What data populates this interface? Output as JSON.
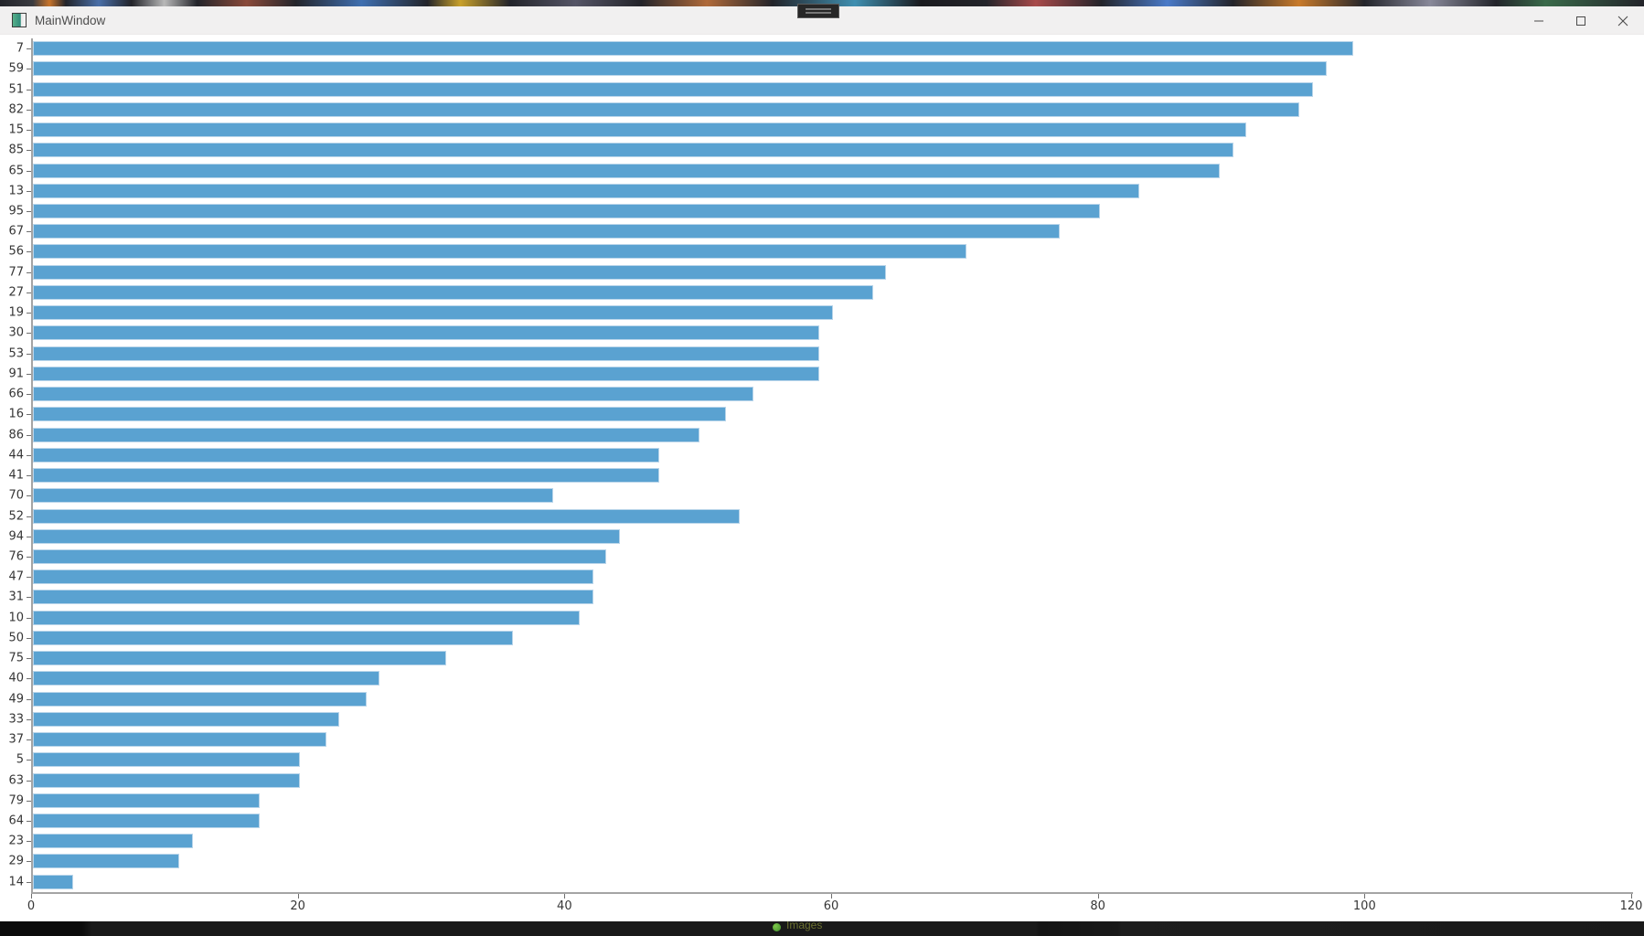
{
  "window": {
    "title": "MainWindow",
    "controls": {
      "minimize": "minimize",
      "maximize": "maximize",
      "close": "close"
    }
  },
  "chart_data": {
    "type": "bar",
    "orientation": "horizontal",
    "title": "",
    "xlabel": "",
    "ylabel": "",
    "xlim": [
      0,
      120
    ],
    "x_ticks": [
      0,
      20,
      40,
      60,
      80,
      100,
      120
    ],
    "grid": false,
    "legend": false,
    "bar_color": "#5aa2d1",
    "bar_edge_color": "#b9d5ea",
    "categories": [
      "7",
      "59",
      "51",
      "82",
      "15",
      "85",
      "65",
      "13",
      "95",
      "67",
      "56",
      "77",
      "27",
      "19",
      "30",
      "53",
      "91",
      "66",
      "16",
      "86",
      "44",
      "41",
      "70",
      "52",
      "94",
      "76",
      "47",
      "31",
      "10",
      "50",
      "75",
      "40",
      "49",
      "33",
      "37",
      "5",
      "63",
      "79",
      "64",
      "23",
      "29",
      "14"
    ],
    "values": [
      99,
      97,
      96,
      95,
      91,
      90,
      89,
      83,
      80,
      77,
      70,
      64,
      63,
      60,
      59,
      59,
      59,
      54,
      52,
      50,
      47,
      47,
      39,
      53,
      44,
      43,
      42,
      42,
      41,
      36,
      31,
      26,
      25,
      23,
      22,
      20,
      20,
      17,
      17,
      12,
      11,
      3
    ]
  },
  "desktop": {
    "taskbar_item_label": "Images"
  },
  "colors": {
    "titlebar_bg": "#f1f0f0",
    "axis": "#a4a4a4",
    "tick_label": "#363636",
    "bar_fill": "#5aa2d1"
  }
}
